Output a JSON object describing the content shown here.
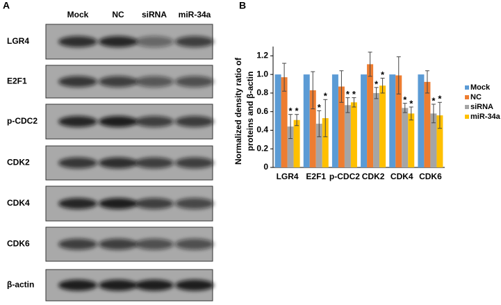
{
  "panel_a": {
    "label": "A",
    "lanes": [
      "Mock",
      "NC",
      "siRNA",
      "miR-34a"
    ],
    "rows": [
      "LGR4",
      "E2F1",
      "p-CDC2",
      "CDK2",
      "CDK4",
      "CDK6",
      "β-actin"
    ]
  },
  "chart_data": {
    "type": "bar",
    "panel_label": "B",
    "y_label": [
      "Normalized density ratio of",
      "proteins and β-actin"
    ],
    "categories": [
      "LGR4",
      "E2F1",
      "p-CDC2",
      "CDK2",
      "CDK4",
      "CDK6"
    ],
    "series": [
      {
        "name": "Mock",
        "color": "#5b9bd5",
        "values": [
          1.0,
          1.0,
          1.0,
          1.0,
          1.0,
          1.0
        ]
      },
      {
        "name": "NC",
        "color": "#ed7d31",
        "values": [
          0.97,
          0.83,
          0.87,
          1.11,
          0.99,
          0.92
        ],
        "errors": [
          0.15,
          0.2,
          0.17,
          0.13,
          0.2,
          0.12
        ]
      },
      {
        "name": "siRNA",
        "color": "#a5a5a5",
        "values": [
          0.44,
          0.47,
          0.67,
          0.8,
          0.64,
          0.58
        ],
        "errors": [
          0.13,
          0.14,
          0.08,
          0.06,
          0.05,
          0.1
        ],
        "markers": [
          "*",
          "*",
          "*",
          "*",
          "*",
          "*"
        ]
      },
      {
        "name": "miR-34a",
        "color": "#ffc000",
        "values": [
          0.51,
          0.53,
          0.7,
          0.88,
          0.58,
          0.56
        ],
        "errors": [
          0.06,
          0.2,
          0.05,
          0.08,
          0.07,
          0.14
        ],
        "markers": [
          "*",
          "*",
          "*",
          "*",
          "*",
          "*"
        ]
      }
    ],
    "ylim": [
      0,
      1.3
    ],
    "yticks": [
      0,
      0.2,
      0.4,
      0.6,
      0.8,
      {
        "value": 1,
        "label": "1.0"
      },
      1.2
    ],
    "legend": "right"
  }
}
